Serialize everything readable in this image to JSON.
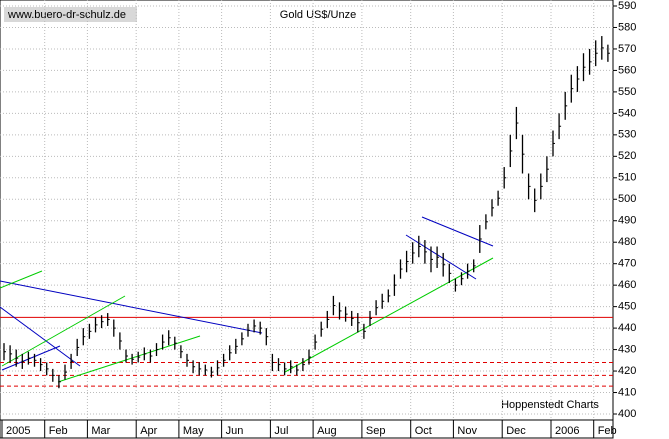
{
  "chart_data": {
    "type": "hilo",
    "title": "Gold US$/Unze",
    "source": "www.buero-dr-schulz.de",
    "credit": "Hoppenstedt Charts",
    "categories": [
      "2005",
      null,
      null,
      null,
      null,
      null,
      null,
      "Feb",
      null,
      null,
      null,
      null,
      null,
      null,
      "Mar",
      null,
      null,
      null,
      null,
      null,
      null,
      null,
      "Apr",
      null,
      null,
      null,
      null,
      null,
      null,
      "May",
      null,
      null,
      null,
      null,
      null,
      null,
      "Jun",
      null,
      null,
      null,
      null,
      null,
      null,
      null,
      "Jul",
      null,
      null,
      null,
      null,
      null,
      null,
      "Aug",
      null,
      null,
      null,
      null,
      null,
      null,
      null,
      "Sep",
      null,
      null,
      null,
      null,
      null,
      null,
      null,
      "Oct",
      null,
      null,
      null,
      null,
      null,
      null,
      "Nov",
      null,
      null,
      null,
      null,
      null,
      null,
      null,
      "Dec",
      null,
      null,
      null,
      null,
      null,
      null,
      null,
      "2006",
      null,
      null,
      null,
      null,
      null,
      null,
      "Feb",
      null,
      null
    ],
    "high": [
      433,
      432,
      430,
      428,
      429,
      428,
      426,
      424,
      421,
      418,
      423,
      428,
      435,
      440,
      442,
      445,
      446,
      447,
      444,
      438,
      430,
      428,
      429,
      431,
      430,
      433,
      437,
      439,
      436,
      432,
      428,
      425,
      424,
      423,
      422,
      425,
      428,
      432,
      435,
      438,
      442,
      444,
      443,
      440,
      428,
      426,
      424,
      425,
      423,
      426,
      430,
      437,
      443,
      448,
      455,
      452,
      450,
      448,
      447,
      442,
      448,
      453,
      456,
      458,
      465,
      472,
      476,
      480,
      483,
      481,
      478,
      478,
      475,
      470,
      463,
      466,
      470,
      472,
      488,
      493,
      500,
      504,
      515,
      530,
      543,
      530,
      512,
      505,
      512,
      520,
      532,
      540,
      550,
      558,
      562,
      568,
      570,
      574,
      576,
      572
    ],
    "low": [
      425,
      424,
      422,
      421,
      423,
      422,
      420,
      418,
      415,
      412,
      416,
      421,
      427,
      432,
      435,
      438,
      440,
      441,
      436,
      430,
      424,
      423,
      424,
      425,
      424,
      427,
      430,
      432,
      430,
      426,
      422,
      419,
      418,
      418,
      417,
      418,
      422,
      425,
      428,
      432,
      436,
      438,
      437,
      432,
      420,
      420,
      418,
      419,
      418,
      420,
      423,
      430,
      436,
      440,
      446,
      444,
      443,
      441,
      438,
      435,
      441,
      446,
      449,
      452,
      455,
      463,
      466,
      470,
      473,
      470,
      466,
      468,
      464,
      461,
      457,
      460,
      463,
      466,
      475,
      486,
      492,
      497,
      505,
      515,
      528,
      512,
      500,
      494,
      500,
      508,
      520,
      528,
      537,
      545,
      550,
      555,
      558,
      562,
      565,
      564
    ],
    "color": "#000000",
    "hlines": [
      {
        "value": 445,
        "color": "#e00000",
        "style": "solid"
      },
      {
        "value": 424,
        "color": "#e00000",
        "style": "dashed"
      },
      {
        "value": 418,
        "color": "#e00000",
        "style": "dashed"
      },
      {
        "value": 413,
        "color": "#e00000",
        "style": "dashed"
      }
    ],
    "ylim": [
      400,
      590
    ],
    "yticks": [
      400,
      410,
      420,
      430,
      440,
      450,
      460,
      470,
      480,
      490,
      500,
      510,
      520,
      530,
      540,
      550,
      560,
      570,
      580,
      590
    ],
    "grid": true
  }
}
